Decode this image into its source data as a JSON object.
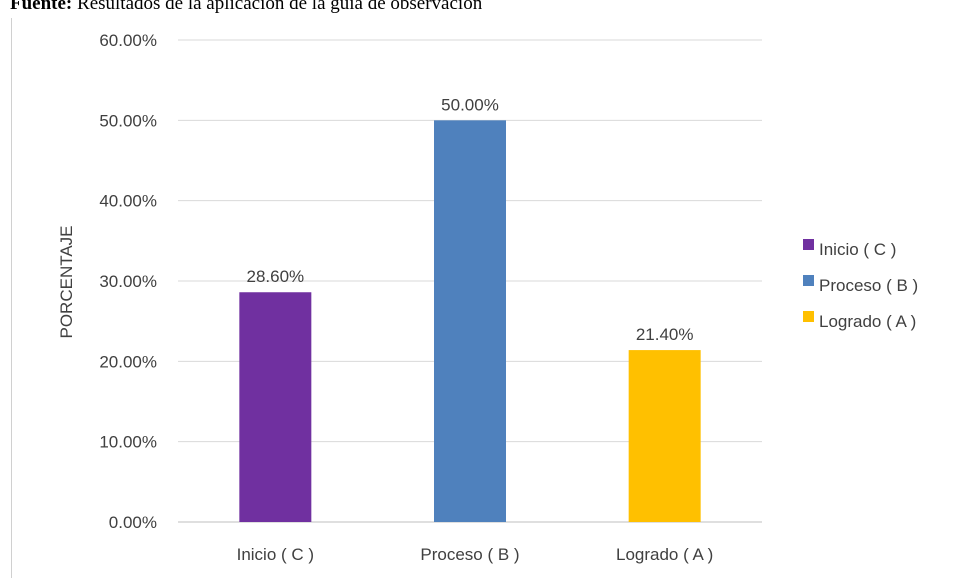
{
  "source": {
    "label": "Fuente:",
    "text": "Resultados de la aplicación de la guía de observación"
  },
  "chart_data": {
    "type": "bar",
    "categories": [
      "Inicio  ( C )",
      "Proceso ( B )",
      "Logrado ( A )"
    ],
    "values": [
      28.6,
      50.0,
      21.4
    ],
    "value_labels": [
      "28.60%",
      "50.00%",
      "21.40%"
    ],
    "colors": [
      "#7030a0",
      "#4f81bd",
      "#ffc000"
    ],
    "title": "",
    "xlabel": "",
    "ylabel": "PORCENTAJE",
    "ylim": [
      0,
      60
    ],
    "yticks": [
      0,
      10,
      20,
      30,
      40,
      50,
      60
    ],
    "ytick_labels": [
      "0.00%",
      "10.00%",
      "20.00%",
      "30.00%",
      "40.00%",
      "50.00%",
      "60.00%"
    ],
    "grid": true,
    "legend": {
      "placement": "right",
      "entries": [
        "Inicio  ( C )",
        "Proceso ( B )",
        "Logrado ( A )"
      ]
    }
  }
}
